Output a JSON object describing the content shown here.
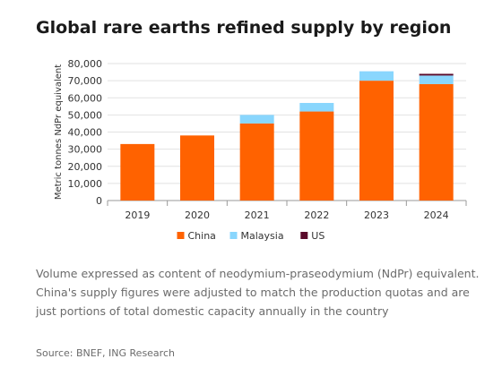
{
  "title": "Global rare earths refined supply by region",
  "caption": "Volume expressed as content of neodymium-praseodymium (NdPr) equivalent. China's supply figures were adjusted to match the production quotas and are just portions of total domestic capacity annually in the country",
  "source": "Source: BNEF, ING Research",
  "chart_data": {
    "type": "bar",
    "stacked": true,
    "categories": [
      "2019",
      "2020",
      "2021",
      "2022",
      "2023",
      "2024"
    ],
    "series": [
      {
        "name": "China",
        "color": "#ff6200",
        "values": [
          33000,
          38000,
          45000,
          52000,
          70000,
          68000
        ]
      },
      {
        "name": "Malaysia",
        "color": "#89d6fd",
        "values": [
          0,
          0,
          5000,
          5000,
          5500,
          5000
        ]
      },
      {
        "name": "US",
        "color": "#5a0a2a",
        "values": [
          0,
          0,
          0,
          0,
          0,
          1000
        ]
      }
    ],
    "ylabel": "Metric tonnes NdPr equivalent",
    "ylim": [
      0,
      80000
    ],
    "yticks": [
      "0",
      "10,000",
      "20,000",
      "30,000",
      "40,000",
      "50,000",
      "60,000",
      "70,000",
      "80,000"
    ],
    "ytick_values": [
      0,
      10000,
      20000,
      30000,
      40000,
      50000,
      60000,
      70000,
      80000
    ],
    "grid": true,
    "legend": "bottom"
  }
}
